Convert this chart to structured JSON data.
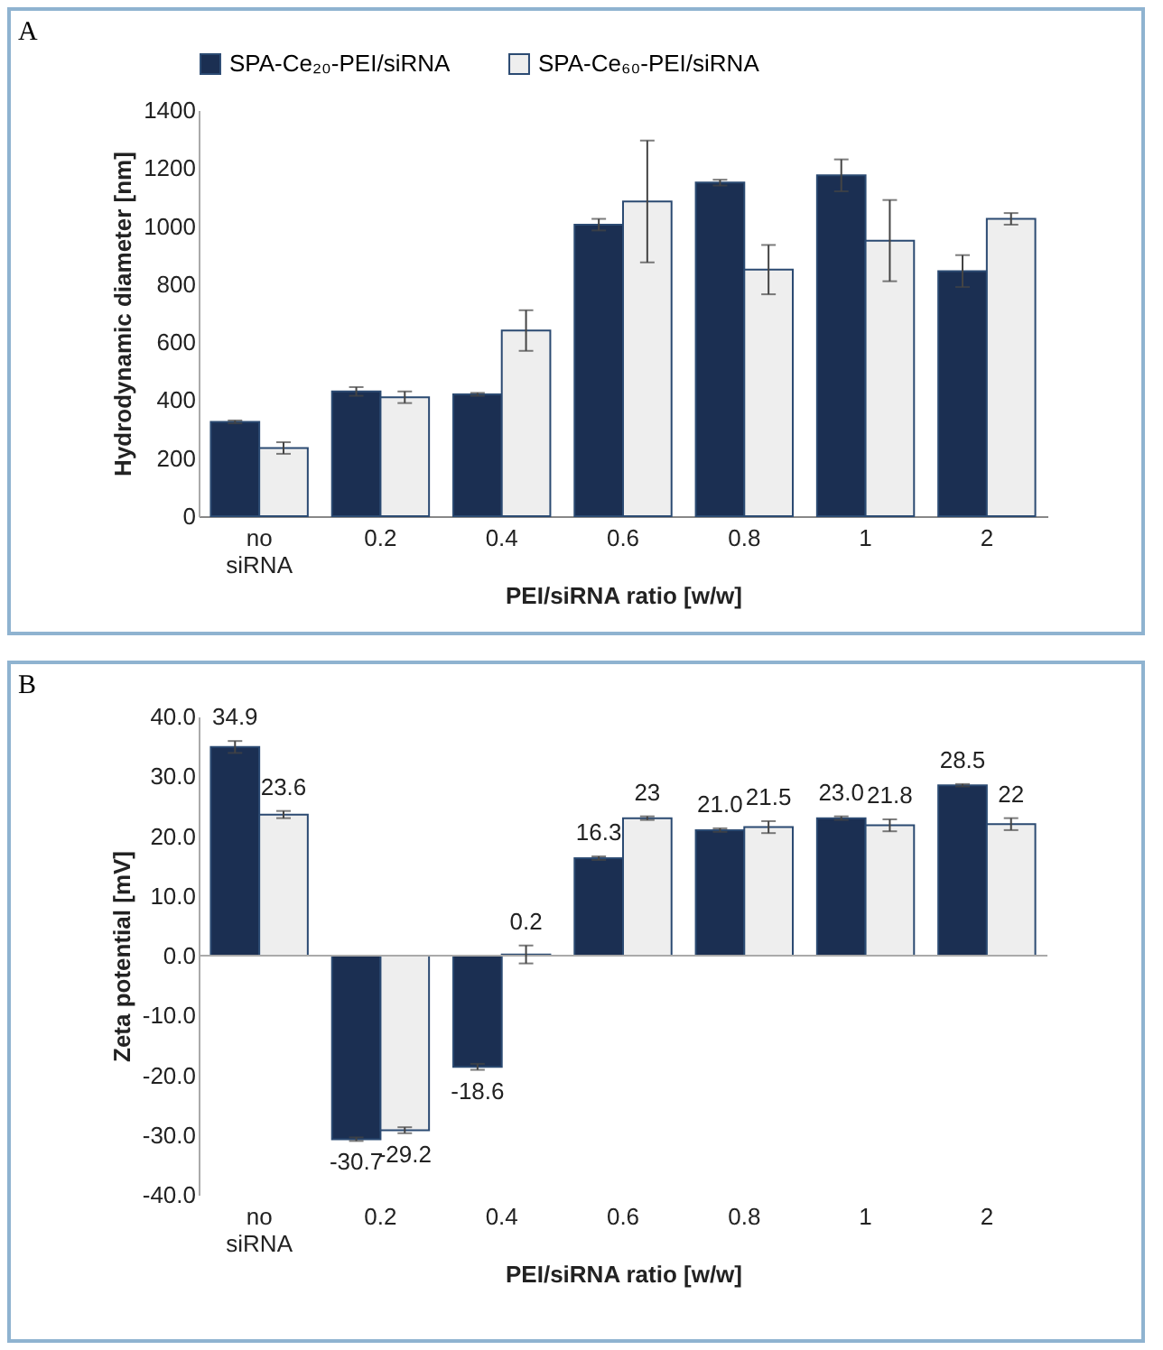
{
  "chart_data": [
    {
      "type": "bar",
      "title": "A",
      "xlabel": "PEI/siRNA ratio [w/w]",
      "ylabel": "Hydrodynamic diameter [nm]",
      "categories": [
        "no siRNA",
        "0.2",
        "0.4",
        "0.6",
        "0.8",
        "1",
        "2"
      ],
      "legend": "top",
      "series": [
        {
          "name": "SPA-Ce₂₀-PEI/siRNA",
          "color": "#1b2f52",
          "values": [
            325,
            430,
            420,
            1005,
            1150,
            1175,
            845
          ],
          "errors": [
            5,
            15,
            5,
            20,
            10,
            55,
            55
          ]
        },
        {
          "name": "SPA-Ce₆₀-PEI/siRNA",
          "color": "#eeeeee",
          "values": [
            235,
            410,
            640,
            1085,
            850,
            950,
            1025
          ],
          "errors": [
            20,
            20,
            70,
            210,
            85,
            140,
            20
          ]
        }
      ],
      "ylim": [
        0,
        1400
      ],
      "yticks": [
        0,
        200,
        400,
        600,
        800,
        1000,
        1200,
        1400
      ]
    },
    {
      "type": "bar",
      "title": "B",
      "xlabel": "PEI/siRNA ratio [w/w]",
      "ylabel": "Zeta potential [mV]",
      "categories": [
        "no siRNA",
        "0.2",
        "0.4",
        "0.6",
        "0.8",
        "1",
        "2"
      ],
      "series": [
        {
          "color": "#1b2f52",
          "values": [
            34.9,
            -30.7,
            -18.6,
            16.3,
            21.0,
            23.0,
            28.5
          ],
          "errors": [
            1,
            0.3,
            0.5,
            0.3,
            0.3,
            0.3,
            0.2
          ],
          "value_labels": [
            "34.9",
            "-30.7",
            "-18.6",
            "16.3",
            "21.0",
            "23.0",
            "28.5"
          ]
        },
        {
          "color": "#eeeeee",
          "values": [
            23.6,
            -29.2,
            0.2,
            23,
            21.5,
            21.8,
            22
          ],
          "errors": [
            0.6,
            0.5,
            1.5,
            0.3,
            1,
            1,
            1
          ],
          "value_labels": [
            "23.6",
            "-29.2",
            "0.2",
            "23",
            "21.5",
            "21.8",
            "22"
          ]
        }
      ],
      "ylim": [
        -40,
        40
      ],
      "yticks": [
        {
          "value": -40,
          "label": "-40.0"
        },
        {
          "value": -30,
          "label": "-30.0"
        },
        {
          "value": -20,
          "label": "-20.0"
        },
        {
          "value": -10,
          "label": "-10.0"
        },
        {
          "value": 0,
          "label": "0.0"
        },
        {
          "value": 10,
          "label": "10.0"
        },
        {
          "value": 20,
          "label": "20.0"
        },
        {
          "value": 30,
          "label": "30.0"
        },
        {
          "value": 40,
          "label": "40.0"
        }
      ]
    }
  ]
}
